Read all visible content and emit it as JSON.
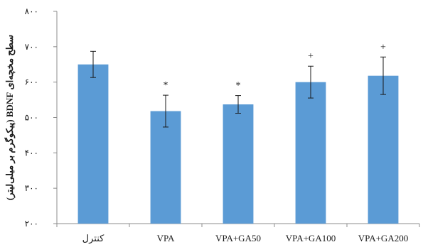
{
  "chart_data": {
    "type": "bar",
    "title": "",
    "xlabel": "",
    "ylabel": "سطح مخچه‌ای BDNF (پیکوگرم بر میلی‌لیتر)",
    "ylim": [
      200,
      800
    ],
    "yticks": [
      200,
      300,
      400,
      500,
      600,
      700,
      800
    ],
    "ytick_labels": [
      "۲۰۰",
      "۳۰۰",
      "۴۰۰",
      "۵۰۰",
      "۶۰۰",
      "۷۰۰",
      "۸۰۰"
    ],
    "categories": [
      "کنترل",
      "VPA",
      "VPA+GA50",
      "VPA+GA100",
      "VPA+GA200"
    ],
    "values": [
      650,
      518,
      537,
      600,
      618
    ],
    "errors": [
      37,
      45,
      25,
      45,
      53
    ],
    "annotations": [
      "",
      "*",
      "*",
      "+",
      "+"
    ],
    "bar_color": "#5b9bd5",
    "grid": false,
    "legend": "none"
  }
}
